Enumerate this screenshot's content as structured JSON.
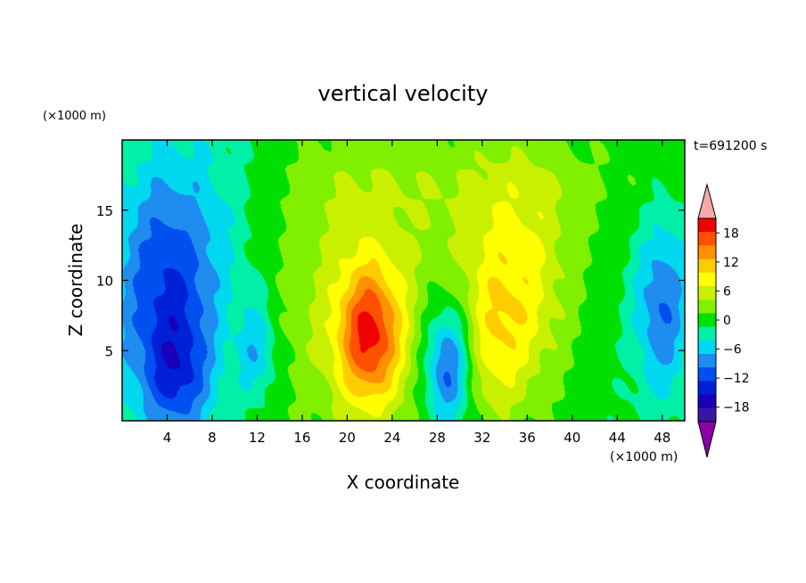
{
  "chart_data": {
    "type": "heatmap",
    "title": "vertical velocity",
    "xlabel": "X coordinate",
    "ylabel": "Z coordinate",
    "x_unit": "(×1000 m)",
    "z_unit": "(×1000 m)",
    "time_label": "t=691200 s",
    "xlim": [
      0,
      50
    ],
    "ylim": [
      0,
      20
    ],
    "x_ticks": [
      4,
      8,
      12,
      16,
      20,
      24,
      28,
      32,
      36,
      40,
      44,
      48
    ],
    "y_ticks": [
      5,
      10,
      15
    ],
    "colorbar": {
      "ticks": [
        18,
        12,
        6,
        0,
        -6,
        -12,
        -18
      ],
      "tick_labels": [
        "18",
        "12",
        "6",
        "0",
        "−6",
        "−12",
        "−18"
      ],
      "levels": [
        -21,
        -18,
        -15,
        -12,
        -9,
        -6,
        -3,
        0,
        3,
        6,
        9,
        12,
        15,
        18,
        21
      ],
      "colors": [
        "#7a00a8",
        "#3a14a4",
        "#1a00b8",
        "#0020d8",
        "#0050f0",
        "#1f8df0",
        "#00d8f0",
        "#00f0a8",
        "#00e000",
        "#80f000",
        "#c8f000",
        "#ffff00",
        "#ffcc00",
        "#ff9000",
        "#ff5000",
        "#f00000",
        "#f8a8a8"
      ],
      "over_color": "#f8a8a8",
      "under_color": "#8c00a8"
    },
    "field": [
      {
        "x": 22,
        "z": 6,
        "value": 16,
        "sx": 2.0,
        "sz": 3.5
      },
      {
        "x": 21,
        "z": 8,
        "value": 6,
        "sx": 5.5,
        "sz": 7
      },
      {
        "x": 35,
        "z": 10,
        "value": 9,
        "sx": 3.5,
        "sz": 5.5
      },
      {
        "x": 33,
        "z": 5,
        "value": 5,
        "sx": 2.5,
        "sz": 4
      },
      {
        "x": 29,
        "z": 4,
        "value": -14,
        "sx": 1.5,
        "sz": 3.2
      },
      {
        "x": 4,
        "z": 8,
        "value": -12,
        "sx": 3.5,
        "sz": 6
      },
      {
        "x": 5,
        "z": 3,
        "value": -7,
        "sx": 2.0,
        "sz": 3
      },
      {
        "x": 12,
        "z": 5,
        "value": -7,
        "sx": 1.2,
        "sz": 2.5
      },
      {
        "x": 48,
        "z": 8,
        "value": -10,
        "sx": 1.8,
        "sz": 4.5
      },
      {
        "x": 28,
        "z": 17,
        "value": 3,
        "sx": 14,
        "sz": 3
      },
      {
        "x": 6,
        "z": 16,
        "value": -4,
        "sx": 5,
        "sz": 5
      }
    ]
  }
}
